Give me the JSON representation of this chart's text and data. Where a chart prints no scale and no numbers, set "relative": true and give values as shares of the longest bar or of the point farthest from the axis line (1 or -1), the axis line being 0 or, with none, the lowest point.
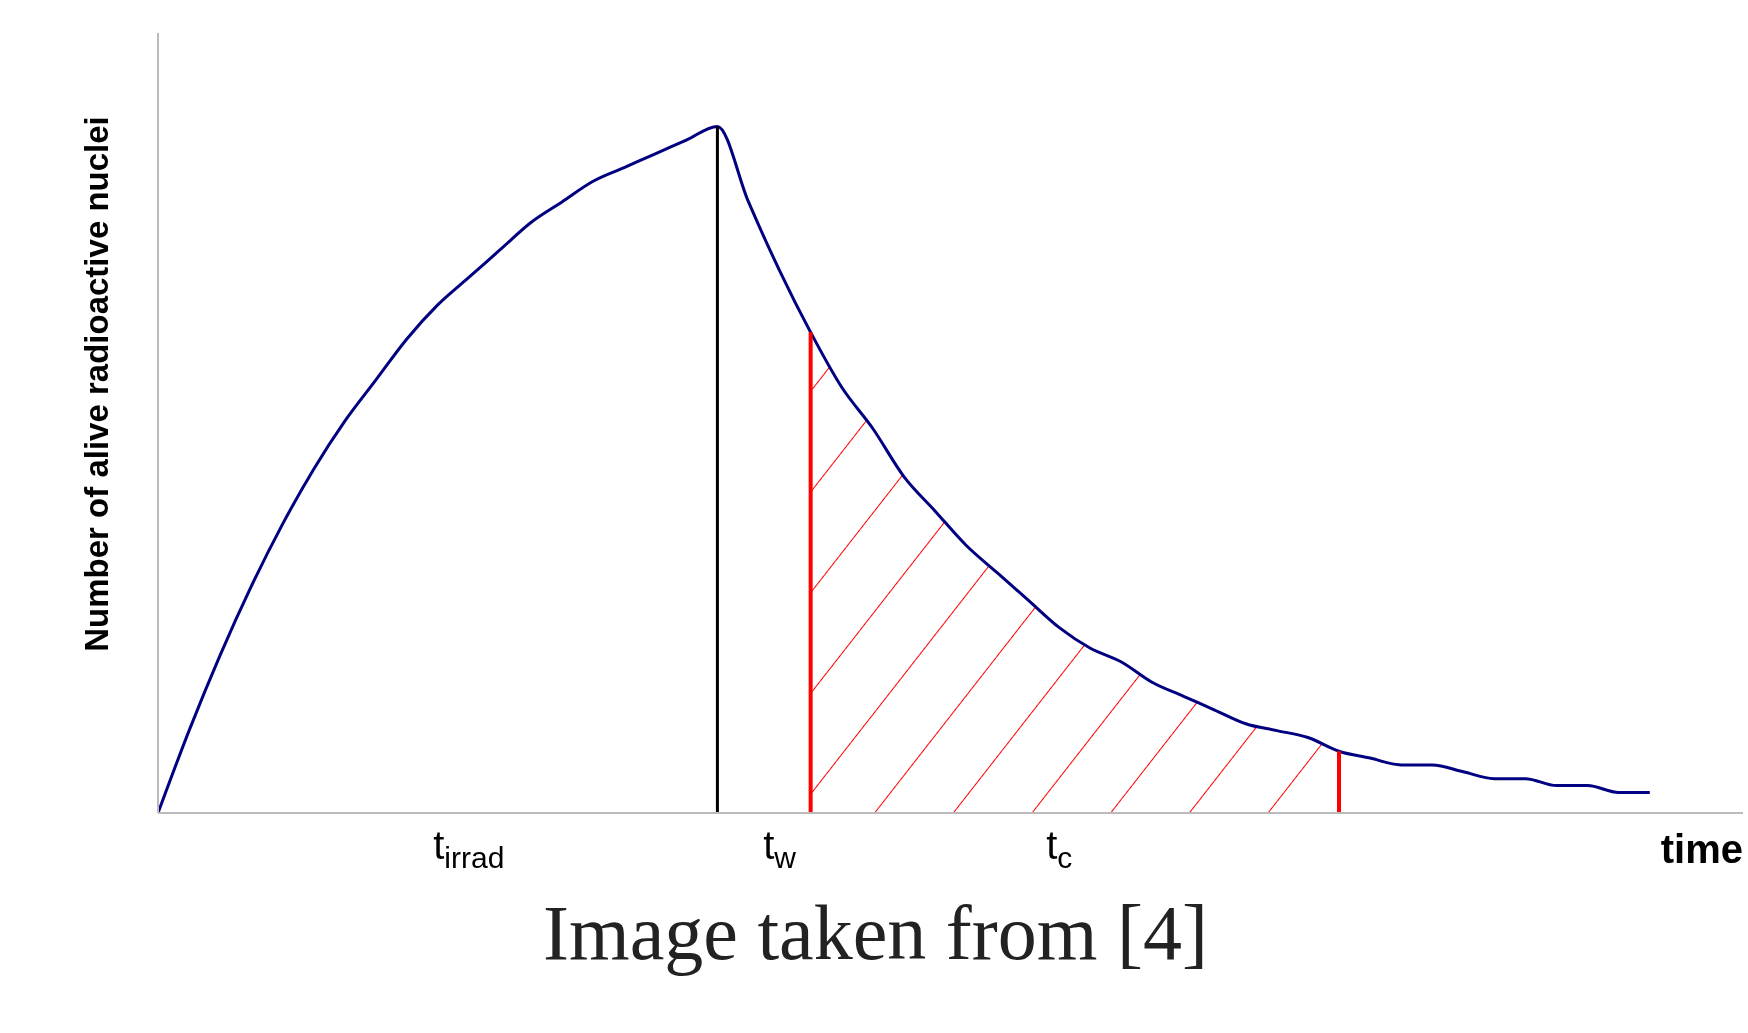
{
  "chart_data": {
    "type": "line",
    "relative": true,
    "ylabel": "Number of alive radioactive nuclei",
    "xlabel": "time",
    "annotations": [
      "Image taken from [4]"
    ],
    "categories": [
      null,
      null,
      null,
      null,
      null,
      null,
      null,
      null,
      null,
      null,
      "t$_{irrad}$",
      null,
      null,
      null,
      null,
      null,
      null,
      null,
      null,
      null,
      "t$_{w}$",
      null,
      null,
      null,
      null,
      null,
      null,
      null,
      null,
      "t$_{c}$",
      null,
      null,
      null,
      null,
      null,
      null,
      null,
      null,
      null,
      null,
      null,
      null,
      null,
      null,
      null,
      null,
      null,
      null,
      null,
      null,
      null,
      null
    ],
    "tick_labels": "x",
    "marker": "none",
    "line_style": "solid",
    "series": [
      {
        "color": "#000080",
        "values": [
          0,
          0.12,
          0.23,
          0.33,
          0.42,
          0.5,
          0.57,
          0.63,
          0.69,
          0.74,
          0.78,
          0.82,
          0.86,
          0.89,
          0.92,
          0.94,
          0.96,
          0.98,
          1.0,
          0.89,
          0.79,
          0.7,
          0.62,
          0.56,
          0.49,
          0.44,
          0.39,
          0.35,
          0.31,
          0.27,
          0.24,
          0.22,
          0.19,
          0.17,
          0.15,
          0.13,
          0.12,
          0.11,
          0.09,
          0.08,
          0.07,
          0.07,
          0.06,
          0.05,
          0.05,
          0.04,
          0.04,
          0.03,
          0.03,
          null,
          null,
          null
        ]
      },
      {
        "type": "area",
        "color": "#ff0000",
        "values": [
          null,
          null,
          null,
          null,
          null,
          null,
          null,
          null,
          null,
          null,
          null,
          null,
          null,
          null,
          null,
          null,
          null,
          null,
          null,
          null,
          null,
          0.7,
          0.62,
          0.56,
          0.49,
          0.44,
          0.39,
          0.35,
          0.31,
          0.27,
          0.24,
          0.22,
          0.19,
          0.17,
          0.15,
          0.13,
          0.12,
          0.11,
          0.09,
          null,
          null,
          null,
          null,
          null,
          null,
          null,
          null,
          null,
          null,
          null,
          null,
          null
        ]
      }
    ]
  }
}
